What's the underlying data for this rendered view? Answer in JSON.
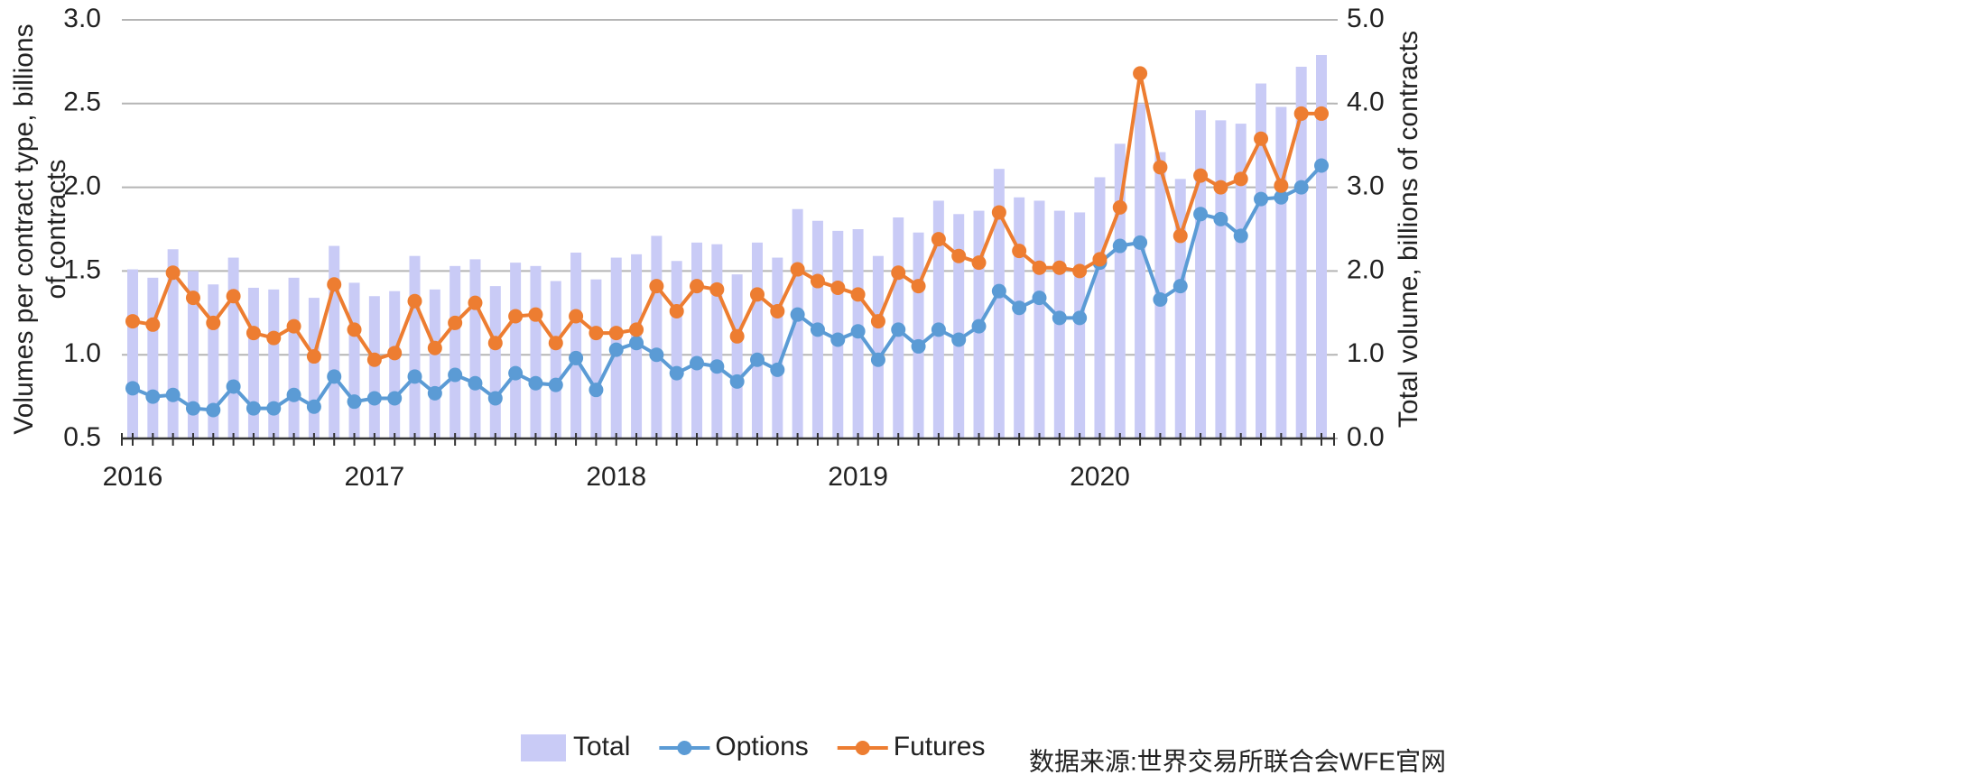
{
  "chart_data": {
    "type": "combo",
    "ylabel": [
      "Volumes per contract type, billions",
      "of contracts"
    ],
    "y2label": "Total volume, billions of contracts",
    "annotations": [
      "数据来源:世界交易所联合会WFE官网"
    ],
    "categories": [
      "2016",
      null,
      null,
      null,
      null,
      null,
      null,
      null,
      null,
      null,
      null,
      null,
      "2017",
      null,
      null,
      null,
      null,
      null,
      null,
      null,
      null,
      null,
      null,
      null,
      "2018",
      null,
      null,
      null,
      null,
      null,
      null,
      null,
      null,
      null,
      null,
      null,
      "2019",
      null,
      null,
      null,
      null,
      null,
      null,
      null,
      null,
      null,
      null,
      null,
      "2020",
      null,
      null,
      null,
      null,
      null,
      null,
      null,
      null,
      null,
      null,
      null
    ],
    "series": [
      {
        "name": "Total",
        "type": "bar",
        "axis": "y2",
        "color": "#c9cbf6",
        "values": [
          2.02,
          1.92,
          2.26,
          2.0,
          1.84,
          2.16,
          1.8,
          1.78,
          1.92,
          1.68,
          2.3,
          1.86,
          1.7,
          1.76,
          2.18,
          1.78,
          2.06,
          2.14,
          1.82,
          2.1,
          2.06,
          1.88,
          2.22,
          1.9,
          2.16,
          2.2,
          2.42,
          2.12,
          2.34,
          2.32,
          1.96,
          2.34,
          2.16,
          2.74,
          2.6,
          2.48,
          2.5,
          2.18,
          2.64,
          2.46,
          2.84,
          2.68,
          2.72,
          3.22,
          2.88,
          2.84,
          2.72,
          2.7,
          3.12,
          3.52,
          4.0,
          3.42,
          3.1,
          3.92,
          3.8,
          3.76,
          4.24,
          3.96,
          4.44,
          4.58
        ]
      },
      {
        "name": "Options",
        "type": "line",
        "color": "#5b9bd5",
        "values": [
          0.8,
          0.75,
          0.76,
          0.68,
          0.67,
          0.81,
          0.68,
          0.68,
          0.76,
          0.69,
          0.87,
          0.72,
          0.74,
          0.74,
          0.87,
          0.77,
          0.88,
          0.83,
          0.74,
          0.89,
          0.83,
          0.82,
          0.98,
          0.79,
          1.03,
          1.07,
          1.0,
          0.89,
          0.95,
          0.93,
          0.84,
          0.97,
          0.91,
          1.24,
          1.15,
          1.09,
          1.14,
          0.97,
          1.15,
          1.05,
          1.15,
          1.09,
          1.17,
          1.38,
          1.28,
          1.34,
          1.22,
          1.22,
          1.55,
          1.65,
          1.67,
          1.33,
          1.41,
          1.84,
          1.81,
          1.71,
          1.93,
          1.94,
          2.0,
          2.13
        ]
      },
      {
        "name": "Futures",
        "type": "line",
        "color": "#ed7d31",
        "values": [
          1.2,
          1.18,
          1.49,
          1.34,
          1.19,
          1.35,
          1.13,
          1.1,
          1.17,
          0.99,
          1.42,
          1.15,
          0.97,
          1.01,
          1.32,
          1.04,
          1.19,
          1.31,
          1.07,
          1.23,
          1.24,
          1.07,
          1.23,
          1.13,
          1.13,
          1.15,
          1.41,
          1.26,
          1.41,
          1.39,
          1.11,
          1.36,
          1.26,
          1.51,
          1.44,
          1.4,
          1.36,
          1.2,
          1.49,
          1.41,
          1.69,
          1.59,
          1.55,
          1.85,
          1.62,
          1.52,
          1.52,
          1.5,
          1.57,
          1.88,
          2.68,
          2.12,
          1.71,
          2.07,
          2.0,
          2.05,
          2.29,
          2.01,
          2.44,
          2.44
        ]
      }
    ],
    "ylim": [
      0.5,
      3.0
    ],
    "yticks": [
      {
        "value": 0.5,
        "label": "0.5"
      },
      {
        "value": 1.0,
        "label": "1.0"
      },
      {
        "value": 1.5,
        "label": "1.5"
      },
      {
        "value": 2.0,
        "label": "2.0"
      },
      {
        "value": 2.5,
        "label": "2.5"
      },
      {
        "value": 3.0,
        "label": "3.0"
      }
    ],
    "y2lim": [
      0,
      5.0
    ],
    "y2ticks": [
      {
        "value": 0,
        "label": "0.0"
      },
      {
        "value": 1.0,
        "label": "1.0"
      },
      {
        "value": 2.0,
        "label": "2.0"
      },
      {
        "value": 3.0,
        "label": "3.0"
      },
      {
        "value": 4.0,
        "label": "4.0"
      },
      {
        "value": 5.0,
        "label": "5.0"
      }
    ],
    "grid": true
  }
}
